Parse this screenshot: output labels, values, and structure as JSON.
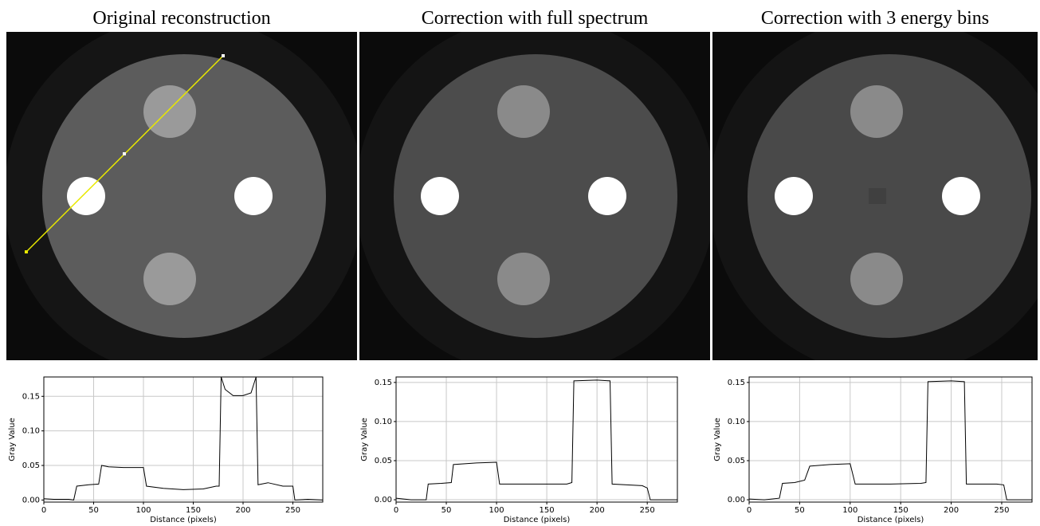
{
  "chart_data": [
    {
      "type": "line",
      "title": "Original reconstruction",
      "xlabel": "Distance (pixels)",
      "ylabel": "Gray Value",
      "color": "#000000",
      "grid": true,
      "x": [
        0,
        10,
        25,
        30,
        33,
        45,
        55,
        58,
        65,
        80,
        100,
        103,
        120,
        140,
        160,
        173,
        176,
        178,
        182,
        190,
        200,
        208,
        213,
        215,
        225,
        240,
        250,
        252,
        265,
        280
      ],
      "values": [
        0.002,
        0.001,
        0.001,
        0.0,
        0.02,
        0.022,
        0.023,
        0.05,
        0.048,
        0.047,
        0.047,
        0.02,
        0.017,
        0.015,
        0.016,
        0.02,
        0.02,
        0.178,
        0.16,
        0.151,
        0.151,
        0.155,
        0.178,
        0.022,
        0.025,
        0.02,
        0.02,
        0.0,
        0.001,
        0.0
      ],
      "xlim": [
        0,
        280
      ],
      "xticks": [
        0,
        50,
        100,
        150,
        200,
        250
      ],
      "ylim": [
        -0.003,
        0.178
      ],
      "yticks": [
        {
          "value": 0,
          "label": "0.00"
        },
        {
          "value": 0.05,
          "label": "0.05"
        },
        {
          "value": 0.1,
          "label": "0.10"
        },
        {
          "value": 0.15,
          "label": "0.15"
        }
      ]
    },
    {
      "type": "line",
      "title": "Correction with full spectrum",
      "xlabel": "Distance (pixels)",
      "ylabel": "Gray Value",
      "color": "#000000",
      "grid": true,
      "x": [
        0,
        15,
        30,
        32,
        45,
        55,
        57,
        80,
        100,
        103,
        140,
        170,
        175,
        177,
        200,
        213,
        215,
        245,
        250,
        253,
        280
      ],
      "values": [
        0.002,
        0.0,
        0.0,
        0.02,
        0.021,
        0.022,
        0.045,
        0.047,
        0.048,
        0.02,
        0.02,
        0.02,
        0.022,
        0.152,
        0.153,
        0.152,
        0.02,
        0.018,
        0.015,
        0.0,
        0.0
      ],
      "xlim": [
        0,
        280
      ],
      "xticks": [
        0,
        50,
        100,
        150,
        200,
        250
      ],
      "ylim": [
        -0.003,
        0.157
      ],
      "yticks": [
        {
          "value": 0,
          "label": "0.00"
        },
        {
          "value": 0.05,
          "label": "0.05"
        },
        {
          "value": 0.1,
          "label": "0.10"
        },
        {
          "value": 0.15,
          "label": "0.15"
        }
      ]
    },
    {
      "type": "line",
      "title": "Correction with 3 energy bins",
      "xlabel": "Distance (pixels)",
      "ylabel": "Gray Value",
      "color": "#000000",
      "grid": true,
      "x": [
        0,
        15,
        30,
        33,
        45,
        55,
        60,
        80,
        100,
        105,
        140,
        170,
        175,
        177,
        200,
        213,
        215,
        245,
        252,
        255,
        280
      ],
      "values": [
        0.001,
        0.0,
        0.002,
        0.021,
        0.022,
        0.025,
        0.043,
        0.045,
        0.046,
        0.02,
        0.02,
        0.021,
        0.022,
        0.151,
        0.152,
        0.151,
        0.02,
        0.02,
        0.019,
        0.0,
        0.0
      ],
      "xlim": [
        0,
        280
      ],
      "xticks": [
        0,
        50,
        100,
        150,
        200,
        250
      ],
      "ylim": [
        -0.003,
        0.157
      ],
      "yticks": [
        {
          "value": 0,
          "label": "0.00"
        },
        {
          "value": 0.05,
          "label": "0.05"
        },
        {
          "value": 0.1,
          "label": "0.10"
        },
        {
          "value": 0.15,
          "label": "0.15"
        }
      ]
    }
  ]
}
